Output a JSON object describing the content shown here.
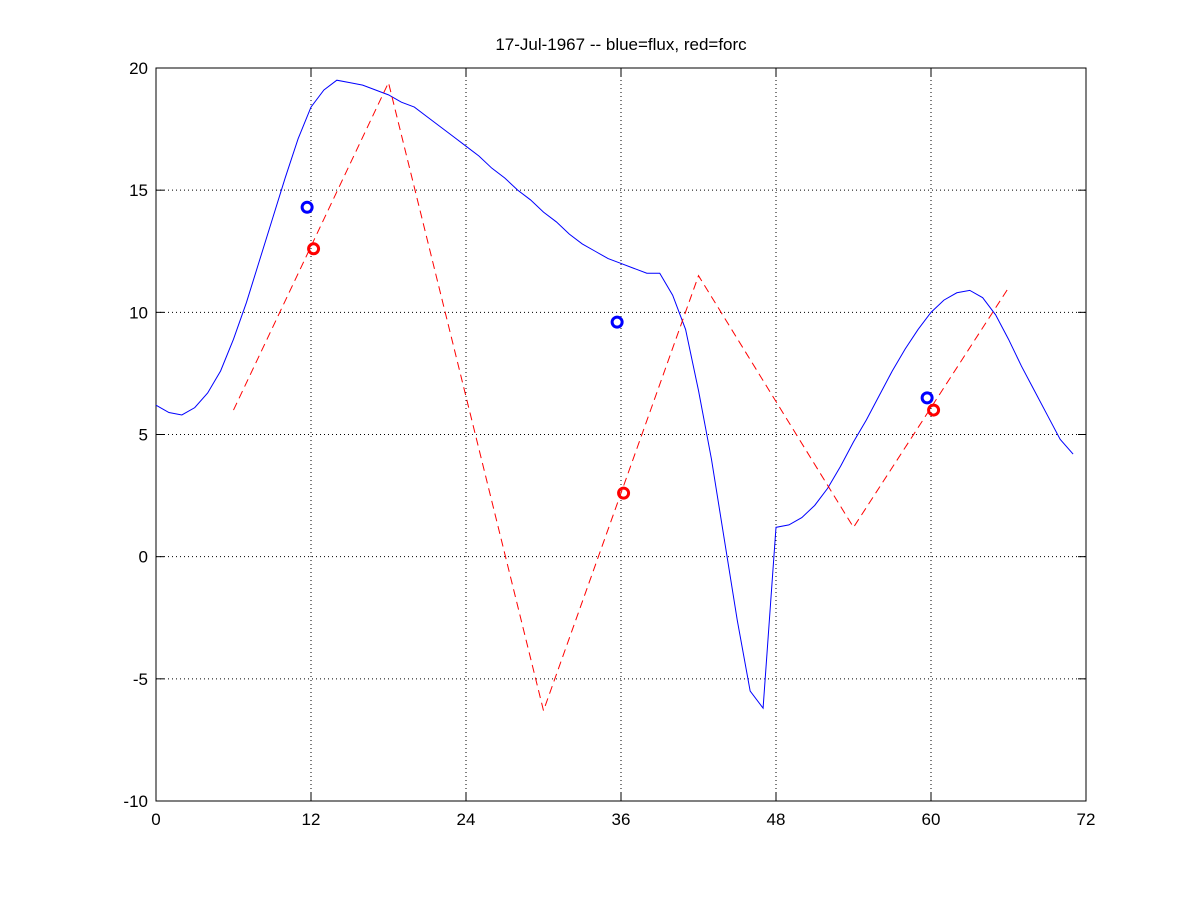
{
  "chart_data": {
    "type": "line",
    "title": "17-Jul-1967 -- blue=flux, red=forc",
    "xlim": [
      0,
      72
    ],
    "xticks": [
      0,
      12,
      24,
      36,
      48,
      60,
      72
    ],
    "ylim": [
      -10,
      20
    ],
    "yticks": [
      -10,
      -5,
      0,
      5,
      10,
      15,
      20
    ],
    "grid": true,
    "series": [
      {
        "color": "#0000ff",
        "line_style": "solid",
        "marker": "none",
        "x": [
          0,
          1,
          2,
          3,
          4,
          5,
          6,
          7,
          8,
          9,
          10,
          11,
          12,
          13,
          14,
          15,
          16,
          17,
          18,
          19,
          20,
          21,
          22,
          23,
          24,
          25,
          26,
          27,
          28,
          29,
          30,
          31,
          32,
          33,
          34,
          35,
          36,
          37,
          38,
          39,
          40,
          41,
          42,
          43,
          44,
          45,
          46,
          47,
          48,
          49,
          50,
          51,
          52,
          53,
          54,
          55,
          56,
          57,
          58,
          59,
          60,
          61,
          62,
          63,
          64,
          65,
          66,
          67,
          68,
          69,
          70,
          71
        ],
        "values": [
          6.2,
          5.9,
          5.8,
          6.1,
          6.7,
          7.6,
          8.9,
          10.4,
          12.1,
          13.8,
          15.5,
          17.1,
          18.4,
          19.1,
          19.5,
          19.4,
          19.3,
          19.1,
          18.9,
          18.6,
          18.4,
          18.0,
          17.6,
          17.2,
          16.8,
          16.4,
          15.9,
          15.5,
          15.0,
          14.6,
          14.1,
          13.7,
          13.2,
          12.8,
          12.5,
          12.2,
          12.0,
          11.8,
          11.6,
          11.6,
          10.7,
          9.3,
          6.8,
          4.0,
          0.7,
          -2.6,
          -5.5,
          -6.2,
          1.2,
          1.3,
          1.6,
          2.1,
          2.8,
          3.7,
          4.7,
          5.6,
          6.6,
          7.6,
          8.5,
          9.3,
          10.0,
          10.5,
          10.8,
          10.9,
          10.6,
          9.9,
          8.9,
          7.8,
          6.8,
          5.8,
          4.8,
          4.2
        ]
      },
      {
        "color": "#ff0000",
        "line_style": "dashed",
        "marker": "none",
        "x": [
          6,
          18,
          30,
          42,
          54,
          66
        ],
        "values": [
          6.0,
          19.4,
          -6.3,
          11.5,
          1.2,
          11.0
        ]
      },
      {
        "color": "#0000ff",
        "line_style": "none",
        "marker": "o",
        "x": [
          11.7,
          35.7,
          59.7
        ],
        "values": [
          14.3,
          9.6,
          6.5
        ]
      },
      {
        "color": "#ff0000",
        "line_style": "none",
        "marker": "o",
        "x": [
          12.2,
          36.2,
          60.2
        ],
        "values": [
          12.6,
          2.6,
          6.0
        ]
      }
    ]
  }
}
